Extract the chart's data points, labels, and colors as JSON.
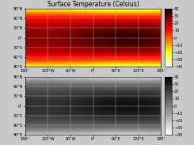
{
  "title": "Surface Temperature (Celsius)",
  "title_fontsize": 5.5,
  "colormap_top": "hot_r",
  "colormap_bottom": "gray_r",
  "vmin": -40,
  "vmax": 40,
  "colorbar_ticks": [
    40,
    30,
    20,
    10,
    0,
    -10,
    -20,
    -30,
    -40
  ],
  "lon_ticks": [
    -180,
    -120,
    -60,
    0,
    60,
    120,
    180
  ],
  "lon_labels": [
    "180°",
    "120°W",
    "60°W",
    "0°",
    "60°E",
    "120°E",
    "180°"
  ],
  "lat_ticks": [
    -90,
    -60,
    -30,
    0,
    30,
    60,
    90
  ],
  "lat_labels": [
    "90°N",
    "60°N",
    "30°N",
    "0°",
    "30°S",
    "60°S",
    "90°S"
  ],
  "lat_ticks_bottom": [
    -90,
    -60,
    -30,
    0,
    30,
    60,
    90
  ],
  "lat_labels_bottom": [
    "90°N",
    "60°N",
    "30°N",
    "0°",
    "30°S",
    "60°S",
    "90°S"
  ],
  "tick_fontsize": 3.5,
  "grid_color": "#aaaaaa",
  "grid_linewidth": 0.3,
  "background_color": "#c8c8c8",
  "fig_facecolor": "#c8c8c8",
  "coastline_color": "black",
  "coastline_linewidth": 0.3
}
